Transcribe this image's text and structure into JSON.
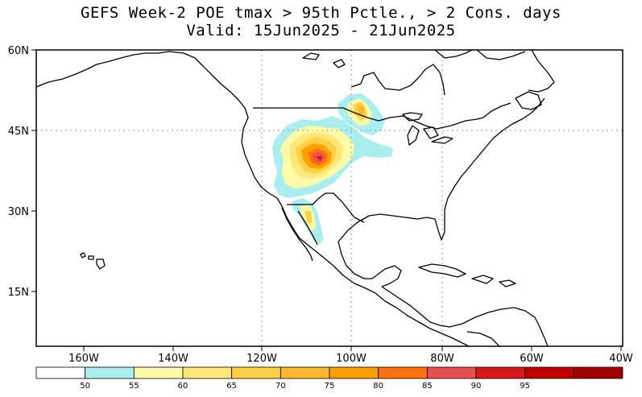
{
  "title": {
    "line1": "GEFS Week-2 POE tmax > 95th Pctle., > 2 Cons. days",
    "line2": "Valid: 15Jun2025 - 21Jun2025"
  },
  "map": {
    "lat_labels": [
      "60N",
      "45N",
      "30N",
      "15N"
    ],
    "lon_labels": [
      "160W",
      "140W",
      "120W",
      "100W",
      "80W",
      "60W",
      "40W"
    ],
    "extent": {
      "lon_min": -172,
      "lon_max": -40,
      "lat_min": 5,
      "lat_max": 60
    },
    "colors": {
      "land_outline": "#000000",
      "grid": "#9a9a9a"
    }
  },
  "legend": {
    "bins": [
      {
        "color": "#ffffff",
        "label": ""
      },
      {
        "color": "#aaeef0",
        "label": "50"
      },
      {
        "color": "#fffaa8",
        "label": "55"
      },
      {
        "color": "#ffe878",
        "label": "60"
      },
      {
        "color": "#ffd048",
        "label": "65"
      },
      {
        "color": "#ffb830",
        "label": "70"
      },
      {
        "color": "#ffa000",
        "label": "75"
      },
      {
        "color": "#ff7010",
        "label": "80"
      },
      {
        "color": "#e85050",
        "label": "85"
      },
      {
        "color": "#d81818",
        "label": "90"
      },
      {
        "color": "#c00000",
        "label": "95"
      },
      {
        "color": "#a00000",
        "label": ""
      }
    ]
  }
}
